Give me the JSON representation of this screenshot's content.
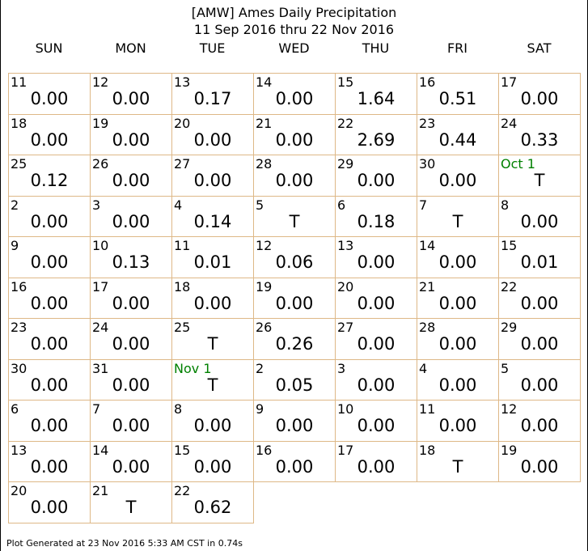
{
  "title": {
    "line1": "[AMW] Ames Daily Precipitation",
    "line2": "11 Sep 2016 thru 22 Nov 2016"
  },
  "footer": "Plot Generated at 23 Nov 2016 5:33 AM CST in 0.74s",
  "colors": {
    "cell_border": "#DEB887",
    "month_label": "#008000",
    "text": "#000000"
  },
  "chart_data": {
    "type": "table",
    "weekday_headers": [
      "SUN",
      "MON",
      "TUE",
      "WED",
      "THU",
      "FRI",
      "SAT"
    ],
    "start_weekday_index": 0,
    "days": [
      {
        "label": "11",
        "value": "0.00"
      },
      {
        "label": "12",
        "value": "0.00"
      },
      {
        "label": "13",
        "value": "0.17"
      },
      {
        "label": "14",
        "value": "0.00"
      },
      {
        "label": "15",
        "value": "1.64"
      },
      {
        "label": "16",
        "value": "0.51"
      },
      {
        "label": "17",
        "value": "0.00"
      },
      {
        "label": "18",
        "value": "0.00"
      },
      {
        "label": "19",
        "value": "0.00"
      },
      {
        "label": "20",
        "value": "0.00"
      },
      {
        "label": "21",
        "value": "0.00"
      },
      {
        "label": "22",
        "value": "2.69"
      },
      {
        "label": "23",
        "value": "0.44"
      },
      {
        "label": "24",
        "value": "0.33"
      },
      {
        "label": "25",
        "value": "0.12"
      },
      {
        "label": "26",
        "value": "0.00"
      },
      {
        "label": "27",
        "value": "0.00"
      },
      {
        "label": "28",
        "value": "0.00"
      },
      {
        "label": "29",
        "value": "0.00"
      },
      {
        "label": "30",
        "value": "0.00"
      },
      {
        "label": "Oct 1",
        "value": "T",
        "month_start": true
      },
      {
        "label": "2",
        "value": "0.00"
      },
      {
        "label": "3",
        "value": "0.00"
      },
      {
        "label": "4",
        "value": "0.14"
      },
      {
        "label": "5",
        "value": "T"
      },
      {
        "label": "6",
        "value": "0.18"
      },
      {
        "label": "7",
        "value": "T"
      },
      {
        "label": "8",
        "value": "0.00"
      },
      {
        "label": "9",
        "value": "0.00"
      },
      {
        "label": "10",
        "value": "0.13"
      },
      {
        "label": "11",
        "value": "0.01"
      },
      {
        "label": "12",
        "value": "0.06"
      },
      {
        "label": "13",
        "value": "0.00"
      },
      {
        "label": "14",
        "value": "0.00"
      },
      {
        "label": "15",
        "value": "0.01"
      },
      {
        "label": "16",
        "value": "0.00"
      },
      {
        "label": "17",
        "value": "0.00"
      },
      {
        "label": "18",
        "value": "0.00"
      },
      {
        "label": "19",
        "value": "0.00"
      },
      {
        "label": "20",
        "value": "0.00"
      },
      {
        "label": "21",
        "value": "0.00"
      },
      {
        "label": "22",
        "value": "0.00"
      },
      {
        "label": "23",
        "value": "0.00"
      },
      {
        "label": "24",
        "value": "0.00"
      },
      {
        "label": "25",
        "value": "T"
      },
      {
        "label": "26",
        "value": "0.26"
      },
      {
        "label": "27",
        "value": "0.00"
      },
      {
        "label": "28",
        "value": "0.00"
      },
      {
        "label": "29",
        "value": "0.00"
      },
      {
        "label": "30",
        "value": "0.00"
      },
      {
        "label": "31",
        "value": "0.00"
      },
      {
        "label": "Nov 1",
        "value": "T",
        "month_start": true
      },
      {
        "label": "2",
        "value": "0.05"
      },
      {
        "label": "3",
        "value": "0.00"
      },
      {
        "label": "4",
        "value": "0.00"
      },
      {
        "label": "5",
        "value": "0.00"
      },
      {
        "label": "6",
        "value": "0.00"
      },
      {
        "label": "7",
        "value": "0.00"
      },
      {
        "label": "8",
        "value": "0.00"
      },
      {
        "label": "9",
        "value": "0.00"
      },
      {
        "label": "10",
        "value": "0.00"
      },
      {
        "label": "11",
        "value": "0.00"
      },
      {
        "label": "12",
        "value": "0.00"
      },
      {
        "label": "13",
        "value": "0.00"
      },
      {
        "label": "14",
        "value": "0.00"
      },
      {
        "label": "15",
        "value": "0.00"
      },
      {
        "label": "16",
        "value": "0.00"
      },
      {
        "label": "17",
        "value": "0.00"
      },
      {
        "label": "18",
        "value": "T"
      },
      {
        "label": "19",
        "value": "0.00"
      },
      {
        "label": "20",
        "value": "0.00"
      },
      {
        "label": "21",
        "value": "T"
      },
      {
        "label": "22",
        "value": "0.62"
      }
    ]
  }
}
